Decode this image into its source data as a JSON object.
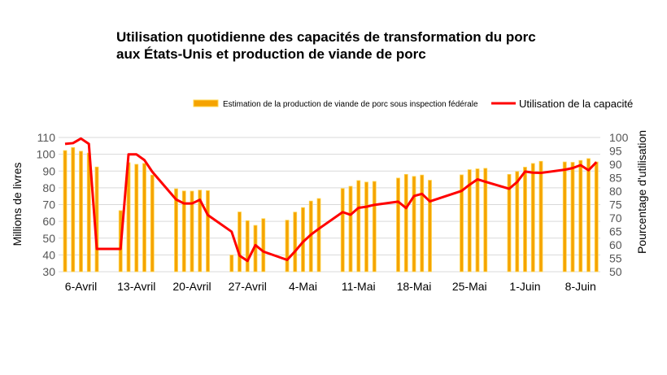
{
  "chart_data": {
    "type": "bar+line",
    "title_line1": "Utilisation quotidienne des capacités de transformation du porc",
    "title_line2": "aux États-Unis et production de viande de porc",
    "ylabel_left": "Millions de livres",
    "ylabel_right": "Pourcentage d'utilisation",
    "ylim_left": [
      30,
      110
    ],
    "ylim_right": [
      50,
      100
    ],
    "yticks_left": [
      30,
      40,
      50,
      60,
      70,
      80,
      90,
      100,
      110
    ],
    "yticks_right": [
      50,
      55,
      60,
      65,
      70,
      75,
      80,
      85,
      90,
      95,
      100
    ],
    "xtick_labels": [
      {
        "date": "04-08",
        "label": "6-Avril"
      },
      {
        "date": "04-15",
        "label": "13-Avril"
      },
      {
        "date": "04-22",
        "label": "20-Avril"
      },
      {
        "date": "04-29",
        "label": "27-Avril"
      },
      {
        "date": "05-06",
        "label": "4-Mai"
      },
      {
        "date": "05-13",
        "label": "11-Mai"
      },
      {
        "date": "05-20",
        "label": "18-Mai"
      },
      {
        "date": "05-27",
        "label": "25-Mai"
      },
      {
        "date": "06-03",
        "label": "1-Juin"
      },
      {
        "date": "06-10",
        "label": "8-Juin"
      }
    ],
    "grid": true,
    "legend_placement": "top-right",
    "colors": {
      "bars": "#F5A300",
      "bar_edge": "#FFD54A",
      "line": "#FF0000",
      "grid": "#D9D9D9"
    },
    "series": [
      {
        "name": "Estimation de la production de viande de porc sous inspection fédérale",
        "type": "bar",
        "axis": "left",
        "x": [
          "04-06",
          "04-07",
          "04-08",
          "04-09",
          "04-10",
          "04-13",
          "04-14",
          "04-15",
          "04-16",
          "04-17",
          "04-20",
          "04-21",
          "04-22",
          "04-23",
          "04-24",
          "04-27",
          "04-28",
          "04-29",
          "04-30",
          "05-01",
          "05-04",
          "05-05",
          "05-06",
          "05-07",
          "05-08",
          "05-11",
          "05-12",
          "05-13",
          "05-14",
          "05-15",
          "05-18",
          "05-19",
          "05-20",
          "05-21",
          "05-22",
          "05-26",
          "05-27",
          "05-28",
          "05-29",
          "06-01",
          "06-02",
          "06-03",
          "06-04",
          "06-05",
          "06-08",
          "06-09",
          "06-10",
          "06-11",
          "06-12"
        ],
        "values": [
          102.2,
          104,
          101.8,
          100.7,
          92.4,
          66.4,
          95,
          94,
          94.5,
          87.6,
          79.4,
          78.1,
          78,
          78.6,
          78.3,
          39.9,
          65.6,
          60.4,
          57.6,
          61.6,
          60.7,
          65.5,
          68.2,
          72.1,
          73.6,
          79.6,
          80.9,
          84.3,
          83.4,
          83.8,
          85.8,
          88,
          86.8,
          87.6,
          84.5,
          87.7,
          90.8,
          91.3,
          91.6,
          88,
          89.7,
          92.3,
          94.5,
          95.8,
          95.4,
          95.2,
          96.3,
          97.4,
          95.4
        ]
      },
      {
        "name": "Utilisation de la capacité",
        "type": "line",
        "axis": "right",
        "x": [
          "04-06",
          "04-07",
          "04-08",
          "04-09",
          "04-10",
          "04-13",
          "04-14",
          "04-15",
          "04-16",
          "04-17",
          "04-20",
          "04-21",
          "04-22",
          "04-23",
          "04-24",
          "04-27",
          "04-28",
          "04-29",
          "04-30",
          "05-01",
          "05-04",
          "05-05",
          "05-06",
          "05-07",
          "05-08",
          "05-11",
          "05-12",
          "05-13",
          "05-14",
          "05-15",
          "05-18",
          "05-19",
          "05-20",
          "05-21",
          "05-22",
          "05-26",
          "05-27",
          "05-28",
          "05-29",
          "06-01",
          "06-02",
          "06-03",
          "06-04",
          "06-05",
          "06-08",
          "06-09",
          "06-10",
          "06-11",
          "06-12"
        ],
        "values": [
          97.6,
          97.9,
          99.6,
          97.6,
          58.5,
          58.5,
          93.7,
          93.7,
          91.6,
          87.2,
          76.9,
          75.4,
          75.4,
          76.8,
          71.1,
          64.9,
          56,
          54,
          59.9,
          57.5,
          54.4,
          57.6,
          61.1,
          63.8,
          66,
          72.2,
          71.2,
          73.8,
          74.2,
          74.9,
          76.1,
          73.7,
          78.2,
          79,
          76.2,
          80.1,
          82.4,
          84.4,
          83.5,
          80.9,
          83.4,
          87.3,
          86.9,
          86.8,
          88,
          88.6,
          89.7,
          87.8,
          90.8
        ]
      }
    ]
  }
}
